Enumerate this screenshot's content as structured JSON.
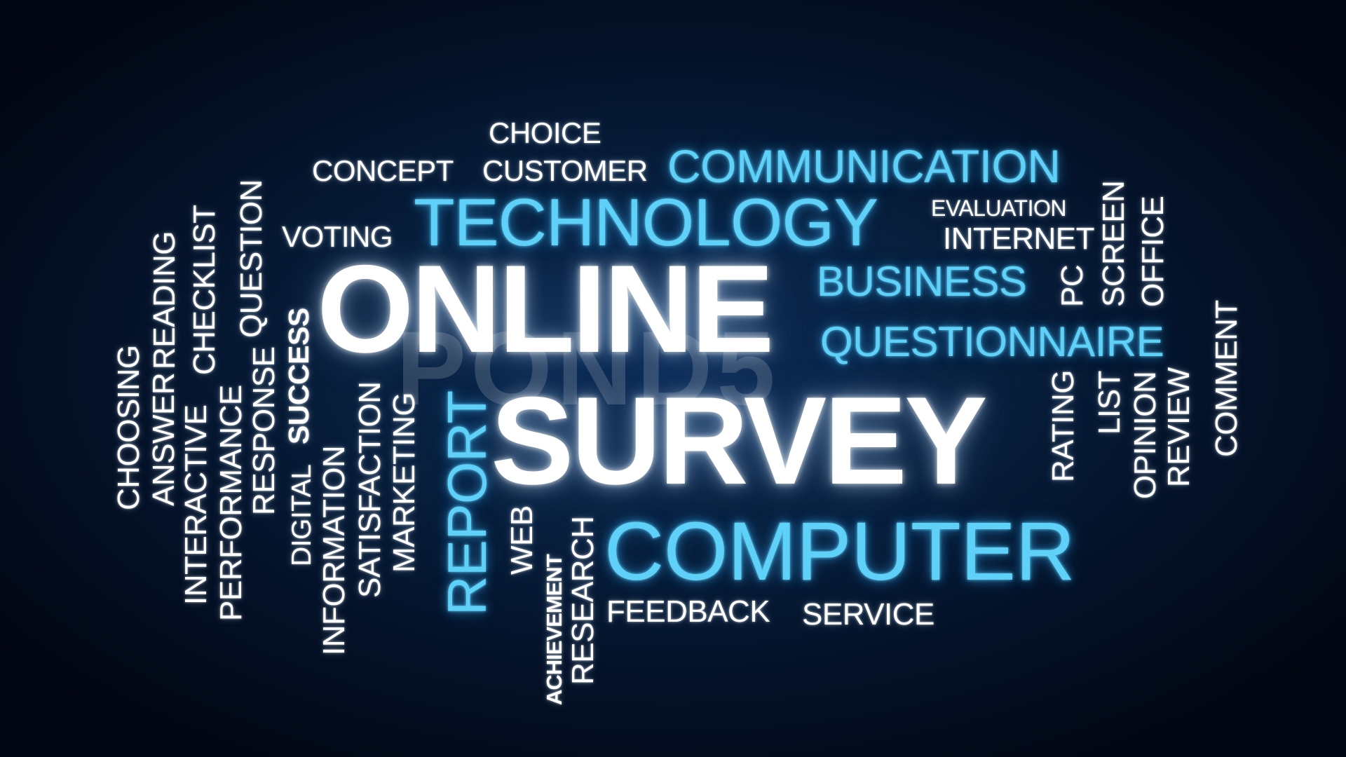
{
  "words": {
    "online": "ONLINE",
    "survey": "SURVEY",
    "technology": "TECHNOLOGY",
    "communication": "COMMUNICATION",
    "computer": "COMPUTER",
    "business": "BUSINESS",
    "questionnaire": "QUESTIONNAIRE",
    "report": "REPORT",
    "choice": "CHOICE",
    "concept": "CONCEPT",
    "customer": "CUSTOMER",
    "voting": "VOTING",
    "evaluation": "EVALUATION",
    "internet": "INTERNET",
    "pc": "PC",
    "screen": "SCREEN",
    "office": "OFFICE",
    "comment": "COMMENT",
    "review": "REVIEW",
    "opinion": "OPINION",
    "list": "LIST",
    "rating": "RATING",
    "feedback": "FEEDBACK",
    "service": "SERVICE",
    "research": "RESEARCH",
    "achievement": "ACHIEVEMENT",
    "web": "WEB",
    "marketing": "MARKETING",
    "satisfaction": "SATISFACTION",
    "information": "INFORMATION",
    "digital": "DIGITAL",
    "success": "SUCCESS",
    "response": "RESPONSE",
    "question": "QUESTION",
    "performance": "PERFORMANCE",
    "checklist": "CHECKLIST",
    "interactive": "INTERACTIVE",
    "reading": "READING",
    "answer": "ANSWER",
    "choosing": "CHOOSING"
  },
  "watermark": "POND5",
  "colors": {
    "background": "#08203f",
    "accent_blue": "#5fd0f7",
    "white": "#ffffff"
  }
}
